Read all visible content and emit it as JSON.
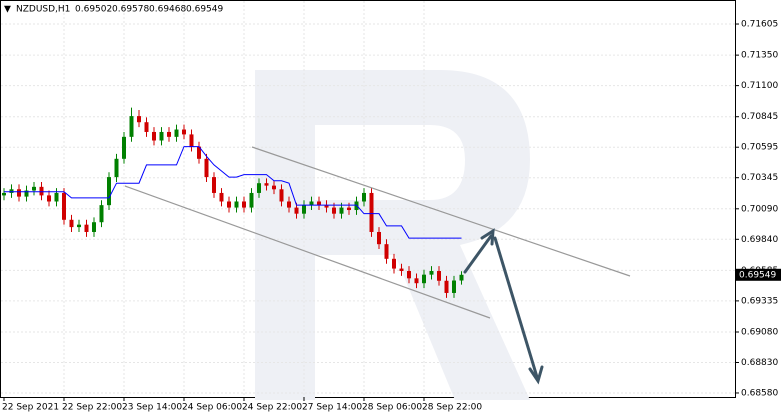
{
  "chart_data": {
    "type": "candlestick",
    "symbol": "NZDUSD,H1",
    "up_color": "#008000",
    "down_color": "#d00000",
    "grid": true,
    "categories": [
      "22 Sep 2021",
      null,
      null,
      null,
      null,
      null,
      null,
      null,
      "22 Sep 22:00",
      null,
      null,
      null,
      null,
      null,
      null,
      null,
      "23 Sep 14:00",
      null,
      null,
      null,
      null,
      null,
      null,
      null,
      "24 Sep 06:00",
      null,
      null,
      null,
      null,
      null,
      null,
      null,
      "24 Sep 22:00",
      null,
      null,
      null,
      null,
      null,
      null,
      null,
      "27 Sep 14:00",
      null,
      null,
      null,
      null,
      null,
      null,
      null,
      "28 Sep 06:00",
      null,
      null,
      null,
      null,
      null,
      null,
      null,
      "28 Sep 22:00",
      null,
      null,
      null,
      null,
      null
    ],
    "ohlc": [
      [
        0.702,
        0.7026,
        0.7016,
        0.7022
      ],
      [
        0.7022,
        0.7029,
        0.7018,
        0.7025
      ],
      [
        0.7025,
        0.7029,
        0.7015,
        0.7019
      ],
      [
        0.7019,
        0.7028,
        0.7015,
        0.7024
      ],
      [
        0.7024,
        0.7031,
        0.702,
        0.7027
      ],
      [
        0.7027,
        0.7031,
        0.7016,
        0.702
      ],
      [
        0.702,
        0.7024,
        0.7011,
        0.7015
      ],
      [
        0.7015,
        0.7026,
        0.7011,
        0.7022
      ],
      [
        0.7022,
        0.7026,
        0.6996,
        0.7
      ],
      [
        0.7,
        0.7004,
        0.699,
        0.6994
      ],
      [
        0.6994,
        0.7,
        0.699,
        0.6996
      ],
      [
        0.6996,
        0.7,
        0.6986,
        0.699
      ],
      [
        0.699,
        0.7002,
        0.6986,
        0.6998
      ],
      [
        0.6998,
        0.7016,
        0.6994,
        0.7012
      ],
      [
        0.7012,
        0.7039,
        0.7008,
        0.7035
      ],
      [
        0.7035,
        0.7054,
        0.7031,
        0.705
      ],
      [
        0.705,
        0.7072,
        0.7046,
        0.7068
      ],
      [
        0.7068,
        0.7092,
        0.7064,
        0.7085
      ],
      [
        0.7085,
        0.709,
        0.7076,
        0.708
      ],
      [
        0.708,
        0.7084,
        0.7068,
        0.7072
      ],
      [
        0.7072,
        0.7076,
        0.7061,
        0.7065
      ],
      [
        0.7065,
        0.7076,
        0.7061,
        0.7072
      ],
      [
        0.7072,
        0.7076,
        0.7064,
        0.7068
      ],
      [
        0.7068,
        0.7078,
        0.7064,
        0.7074
      ],
      [
        0.7074,
        0.7078,
        0.7066,
        0.707
      ],
      [
        0.707,
        0.7074,
        0.7056,
        0.706
      ],
      [
        0.706,
        0.7064,
        0.7046,
        0.705
      ],
      [
        0.705,
        0.7054,
        0.7031,
        0.7035
      ],
      [
        0.7035,
        0.7039,
        0.7018,
        0.7022
      ],
      [
        0.7022,
        0.7026,
        0.7011,
        0.7015
      ],
      [
        0.7015,
        0.7019,
        0.7006,
        0.701
      ],
      [
        0.701,
        0.7019,
        0.7006,
        0.7015
      ],
      [
        0.7015,
        0.7019,
        0.7006,
        0.701
      ],
      [
        0.701,
        0.7026,
        0.7006,
        0.7022
      ],
      [
        0.7022,
        0.7034,
        0.7018,
        0.703
      ],
      [
        0.703,
        0.7034,
        0.7024,
        0.7028
      ],
      [
        0.7028,
        0.7032,
        0.7021,
        0.7025
      ],
      [
        0.7025,
        0.7029,
        0.7011,
        0.7015
      ],
      [
        0.7015,
        0.7019,
        0.7006,
        0.701
      ],
      [
        0.701,
        0.7014,
        0.7001,
        0.7005
      ],
      [
        0.7005,
        0.7016,
        0.7001,
        0.7012
      ],
      [
        0.7012,
        0.7019,
        0.7008,
        0.7015
      ],
      [
        0.7015,
        0.7019,
        0.7008,
        0.7012
      ],
      [
        0.7012,
        0.7016,
        0.7006,
        0.701
      ],
      [
        0.701,
        0.7014,
        0.7001,
        0.7005
      ],
      [
        0.7005,
        0.7014,
        0.7001,
        0.701
      ],
      [
        0.701,
        0.7014,
        0.7004,
        0.7008
      ],
      [
        0.7008,
        0.7019,
        0.7004,
        0.7015
      ],
      [
        0.7015,
        0.7026,
        0.7011,
        0.7022
      ],
      [
        0.7022,
        0.7026,
        0.6986,
        0.699
      ],
      [
        0.699,
        0.6994,
        0.6976,
        0.698
      ],
      [
        0.698,
        0.6984,
        0.6964,
        0.6968
      ],
      [
        0.6968,
        0.6972,
        0.6956,
        0.696
      ],
      [
        0.696,
        0.6964,
        0.6954,
        0.6958
      ],
      [
        0.6958,
        0.6962,
        0.6948,
        0.6952
      ],
      [
        0.6952,
        0.6956,
        0.6944,
        0.6948
      ],
      [
        0.6948,
        0.6959,
        0.6944,
        0.6955
      ],
      [
        0.6955,
        0.6962,
        0.6951,
        0.6958
      ],
      [
        0.6958,
        0.6962,
        0.6946,
        0.695
      ],
      [
        0.695,
        0.6954,
        0.6936,
        0.694
      ],
      [
        0.694,
        0.6954,
        0.6936,
        0.69502
      ],
      [
        0.69502,
        0.69578,
        0.69468,
        0.69549
      ]
    ],
    "kijun": {
      "color": "#0000ff",
      "values": [
        0.7023,
        0.7023,
        0.7023,
        0.7023,
        0.7023,
        0.7023,
        0.7023,
        0.7023,
        0.7023,
        0.7018,
        0.7018,
        0.7018,
        0.7018,
        0.7018,
        0.7018,
        0.703,
        0.703,
        0.703,
        0.703,
        0.7045,
        0.7045,
        0.7045,
        0.7045,
        0.7045,
        0.706,
        0.706,
        0.706,
        0.7052,
        0.7045,
        0.704,
        0.7035,
        0.7035,
        0.7037,
        0.7037,
        0.7037,
        0.7037,
        0.7032,
        0.7032,
        0.703,
        0.7012,
        0.7012,
        0.7012,
        0.7012,
        0.7012,
        0.7012,
        0.7012,
        0.7012,
        0.7012,
        0.7005,
        0.7005,
        0.7005,
        0.6995,
        0.6995,
        0.6995,
        0.6985,
        0.6985,
        0.6985,
        0.6985,
        0.6985,
        0.6985,
        0.6985,
        0.6985
      ]
    },
    "ylim": [
      0.68547,
      0.71802
    ],
    "yticks": [
      0.71605,
      {
        "value": 0.7135,
        "label": "0.71350"
      },
      {
        "value": 0.711,
        "label": "0.71100"
      },
      0.70845,
      0.70595,
      0.70345,
      {
        "value": 0.7009,
        "label": "0.70090"
      },
      {
        "value": 0.6984,
        "label": "0.69840"
      },
      0.69585,
      0.69335,
      {
        "value": 0.6908,
        "label": "0.69080"
      },
      {
        "value": 0.6883,
        "label": "0.68830"
      },
      {
        "value": 0.6858,
        "label": "0.68580"
      }
    ]
  }
}
